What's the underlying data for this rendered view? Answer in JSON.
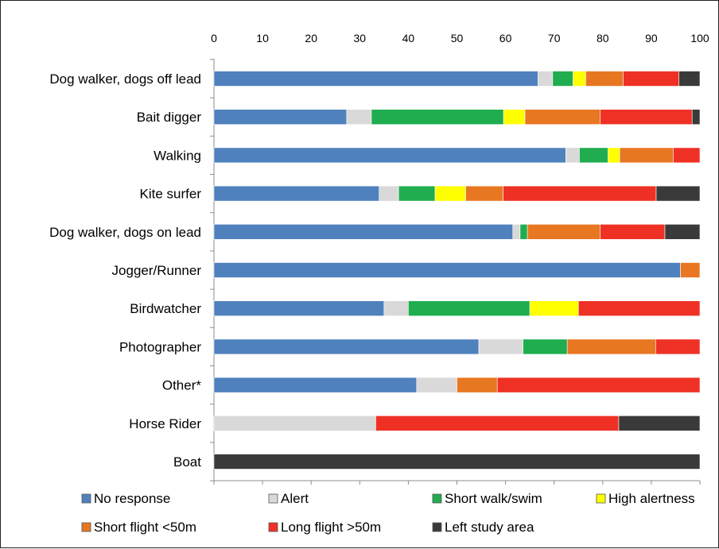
{
  "chart_data": {
    "type": "bar",
    "orientation": "horizontal",
    "stacked": true,
    "xlim": [
      0,
      100
    ],
    "x_ticks": [
      "0",
      "10",
      "20",
      "30",
      "40",
      "50",
      "60",
      "70",
      "80",
      "90",
      "100"
    ],
    "x_axis_position": "top",
    "grid": false,
    "legend_position": "bottom",
    "categories": [
      "Dog walker, dogs off lead",
      "Bait digger",
      "Walking",
      "Kite surfer",
      "Dog walker, dogs on lead",
      "Jogger/Runner",
      "Birdwatcher",
      "Photographer",
      "Other*",
      "Horse Rider",
      "Boat"
    ],
    "series": [
      {
        "name": "No response",
        "color": "#4f81bd",
        "values": [
          66.7,
          27.3,
          72.4,
          34.0,
          61.5,
          96.0,
          35.0,
          54.5,
          41.7,
          0,
          0
        ]
      },
      {
        "name": "Alert",
        "color": "#d9d9d9",
        "values": [
          3.0,
          5.1,
          2.8,
          4.0,
          1.5,
          0,
          5.0,
          9.1,
          8.3,
          33.3,
          0
        ]
      },
      {
        "name": "Short walk/swim",
        "color": "#1fad4f",
        "values": [
          4.2,
          27.2,
          5.9,
          7.5,
          1.5,
          0,
          25.0,
          9.1,
          0,
          0,
          0
        ]
      },
      {
        "name": "High alertness",
        "color": "#ffff00",
        "values": [
          2.6,
          4.4,
          2.4,
          6.3,
          0,
          0,
          10.0,
          0,
          0,
          0,
          0
        ]
      },
      {
        "name": "Short flight <50m",
        "color": "#e87722",
        "values": [
          7.7,
          15.5,
          11.0,
          7.7,
          15.0,
          4.0,
          0,
          18.2,
          8.3,
          0,
          0
        ]
      },
      {
        "name": "Long flight >50m",
        "color": "#ee3124",
        "values": [
          11.5,
          18.9,
          5.5,
          31.5,
          13.3,
          0,
          25.0,
          9.1,
          41.7,
          50.0,
          0
        ]
      },
      {
        "name": "Left study area",
        "color": "#3a3a3a",
        "values": [
          4.3,
          1.6,
          0,
          9.0,
          7.2,
          0,
          0,
          0,
          0,
          16.7,
          100.0
        ]
      }
    ]
  }
}
